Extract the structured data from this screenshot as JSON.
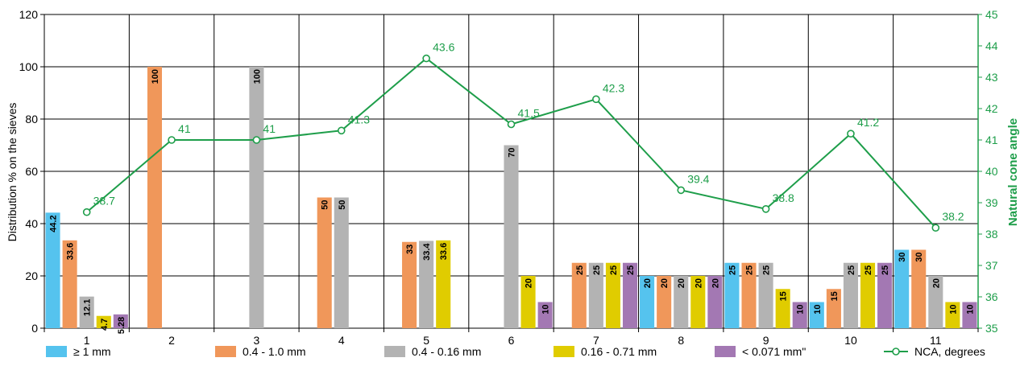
{
  "chart_data": {
    "type": "bar",
    "categories": [
      "1",
      "2",
      "3",
      "4",
      "5",
      "6",
      "7",
      "8",
      "9",
      "10",
      "11"
    ],
    "ylabel": "Distribution % on the sieves",
    "ylim": [
      0,
      120
    ],
    "yticks": [
      0,
      20,
      40,
      60,
      80,
      100,
      120
    ],
    "y2label": "Natural cone angle",
    "y2lim": [
      35,
      45
    ],
    "y2ticks": [
      35,
      36,
      37,
      38,
      39,
      40,
      41,
      42,
      43,
      44,
      45
    ],
    "grid": true,
    "legend_position": "bottom",
    "series": [
      {
        "name": "≥ 1 mm",
        "color": "#55c3ee",
        "values": [
          44.2,
          null,
          null,
          null,
          null,
          null,
          null,
          20,
          25,
          10,
          30
        ],
        "labels": [
          "44.2",
          "",
          "",
          "",
          "",
          "",
          "",
          "20",
          "25",
          "10",
          "30"
        ]
      },
      {
        "name": "0.4 - 1.0 mm",
        "color": "#f0975a",
        "values": [
          33.6,
          100,
          null,
          50,
          33,
          null,
          25,
          20,
          25,
          15,
          30
        ],
        "labels": [
          "33.6",
          "100",
          "",
          "50",
          "33",
          "",
          "25",
          "20",
          "25",
          "15",
          "30"
        ]
      },
      {
        "name": "0.4 - 0.16 mm",
        "color": "#b3b3b3",
        "values": [
          12.1,
          null,
          100,
          50,
          33.4,
          70,
          25,
          20,
          25,
          25,
          20
        ],
        "labels": [
          "12.1",
          "",
          "100",
          "50",
          "33.4",
          "70",
          "25",
          "20",
          "25",
          "25",
          "20"
        ]
      },
      {
        "name": "0.16 - 0.71 mm",
        "color": "#e0cc00",
        "values": [
          4.7,
          null,
          null,
          null,
          33.6,
          20,
          25,
          20,
          15,
          25,
          10
        ],
        "labels": [
          "4.7",
          "",
          "",
          "",
          "33.6",
          "20",
          "25",
          "20",
          "15",
          "25",
          "10"
        ]
      },
      {
        "name": "< 0.071 mm\"",
        "color": "#a378b3",
        "values": [
          5.28,
          null,
          null,
          null,
          null,
          10,
          25,
          20,
          10,
          25,
          10
        ],
        "labels": [
          "5.28",
          "",
          "",
          "",
          "",
          "10",
          "25",
          "20",
          "10",
          "25",
          "10"
        ]
      }
    ],
    "line": {
      "name": "NCA, degrees",
      "color": "#1e9e4a",
      "axis": "right",
      "values": [
        38.7,
        41,
        41,
        41.3,
        43.6,
        41.5,
        42.3,
        39.4,
        38.8,
        41.2,
        38.2
      ],
      "labels": [
        "38.7",
        "41",
        "41",
        "41.3",
        "43.6",
        "41.5",
        "42.3",
        "39.4",
        "38.8",
        "41.2",
        "38.2"
      ]
    }
  }
}
